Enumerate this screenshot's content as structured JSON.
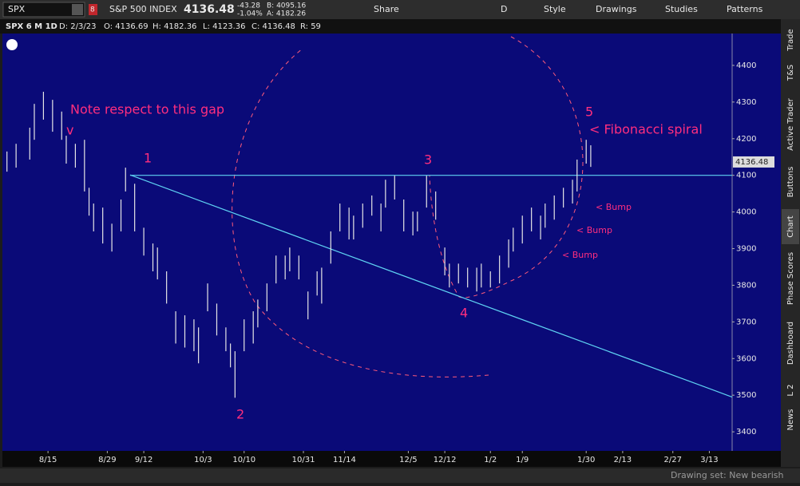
{
  "toolbar": {
    "symbol": "SPX",
    "badge": "8",
    "name": "S&P 500 INDEX",
    "last": "4136.48",
    "change": "-43.28",
    "change_pct": "-1.04%",
    "bid": "B: 4095.16",
    "ask": "A: 4182.26",
    "buttons": [
      "Share",
      "D",
      "Style",
      "Drawings",
      "Studies",
      "Patterns"
    ]
  },
  "info_bar": [
    "SPX 6 M 1D",
    "D: 2/3/23",
    "O: 4136.69",
    "H: 4182.36",
    "L: 4123.36",
    "C: 4136.48",
    "R: 59"
  ],
  "chart_data": {
    "type": "ohlc",
    "color": "#e6e6e6",
    "line_color": "#5fd3f3",
    "annotation_color": "#ff2e7e",
    "xlim": [
      0,
      160
    ],
    "ylim": [
      3348,
      4487
    ],
    "yticks": [
      3400,
      3500,
      3600,
      3700,
      3800,
      3900,
      4000,
      4100,
      4200,
      4300,
      4400
    ],
    "xticks": [
      {
        "value": 10,
        "label": "8/15"
      },
      {
        "value": 23,
        "label": "8/29"
      },
      {
        "value": 31,
        "label": "9/12"
      },
      {
        "value": 44,
        "label": "10/3"
      },
      {
        "value": 53,
        "label": "10/10"
      },
      {
        "value": 66,
        "label": "10/31"
      },
      {
        "value": 75,
        "label": "11/14"
      },
      {
        "value": 89,
        "label": "12/5"
      },
      {
        "value": 97,
        "label": "12/12"
      },
      {
        "value": 107,
        "label": "1/2"
      },
      {
        "value": 114,
        "label": "1/9"
      },
      {
        "value": 128,
        "label": "1/30"
      },
      {
        "value": 136,
        "label": "2/13"
      },
      {
        "value": 147,
        "label": "2/27"
      },
      {
        "value": 155,
        "label": "3/13"
      }
    ],
    "x": [
      1,
      3,
      6,
      7,
      9,
      11,
      13,
      14,
      16,
      18,
      19,
      20,
      22,
      24,
      26,
      27,
      29,
      31,
      33,
      34,
      36,
      38,
      40,
      42,
      43,
      45,
      47,
      49,
      50,
      51,
      53,
      55,
      56,
      58,
      60,
      62,
      63,
      65,
      67,
      69,
      70,
      72,
      74,
      76,
      77,
      79,
      81,
      83,
      84,
      86,
      88,
      90,
      91,
      93,
      95,
      97,
      98,
      100,
      102,
      104,
      105,
      107,
      109,
      111,
      112,
      114,
      116,
      118,
      119,
      121,
      123,
      125,
      126,
      128,
      129
    ],
    "high": [
      4165,
      4186,
      4230,
      4295,
      4328,
      4306,
      4274,
      4208,
      4186,
      4197,
      4066,
      4023,
      4012,
      3968,
      4034,
      4121,
      4077,
      3957,
      3914,
      3903,
      3838,
      3729,
      3718,
      3707,
      3685,
      3805,
      3750,
      3685,
      3641,
      3620,
      3707,
      3729,
      3761,
      3805,
      3881,
      3881,
      3903,
      3881,
      3783,
      3838,
      3848,
      3947,
      4023,
      4012,
      3990,
      4023,
      4045,
      4023,
      4088,
      4099,
      4034,
      4001,
      4001,
      4099,
      4056,
      3903,
      3859,
      3859,
      3848,
      3848,
      3859,
      3838,
      3881,
      3925,
      3957,
      3990,
      4012,
      3990,
      4023,
      4045,
      4066,
      4088,
      4143,
      4197,
      4182
    ],
    "low": [
      4110,
      4121,
      4143,
      4197,
      4252,
      4219,
      4197,
      4132,
      4121,
      4056,
      3990,
      3947,
      3914,
      3892,
      3947,
      4056,
      3947,
      3881,
      3838,
      3816,
      3750,
      3641,
      3630,
      3620,
      3587,
      3729,
      3663,
      3620,
      3576,
      3493,
      3620,
      3641,
      3685,
      3729,
      3805,
      3816,
      3838,
      3816,
      3707,
      3772,
      3750,
      3859,
      3947,
      3925,
      3925,
      3957,
      3990,
      3947,
      4012,
      4034,
      3947,
      3936,
      3947,
      4012,
      3979,
      3827,
      3794,
      3805,
      3794,
      3783,
      3794,
      3794,
      3805,
      3848,
      3892,
      3914,
      3947,
      3925,
      3957,
      3979,
      4012,
      4023,
      4056,
      4132,
      4123
    ],
    "last_price": 4136.48,
    "lines": [
      {
        "x": [
          28,
          160
        ],
        "y": [
          4101,
          3495
        ]
      },
      {
        "x": [
          28,
          160
        ],
        "y": [
          4100,
          4100
        ]
      }
    ],
    "annotations": [
      "Note respect to this gap",
      "v",
      "1",
      "2",
      "3",
      "4",
      "5",
      "< Fibonacci spiral",
      "< Bump",
      "< Bump",
      "< Bump"
    ]
  },
  "sidebar": [
    "Trade",
    "T&S",
    "Active Trader",
    "Buttons",
    "Chart",
    "Phase Scores",
    "Dashboard",
    "L 2",
    "News"
  ],
  "status": "Drawing set: New bearish"
}
